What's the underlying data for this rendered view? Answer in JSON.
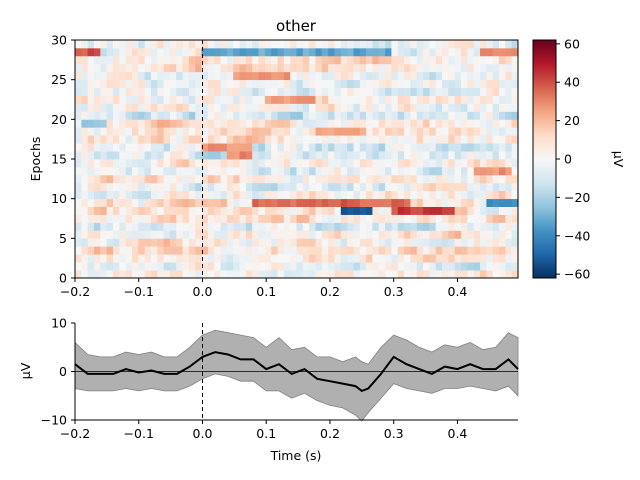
{
  "chart_data": [
    {
      "type": "heatmap",
      "title": "other",
      "xlabel": "",
      "ylabel": "Epochs",
      "xlim": [
        -0.2,
        0.495
      ],
      "ylim": [
        0,
        30
      ],
      "x_ticks": [
        "−0.2",
        "−0.1",
        "0.0",
        "0.1",
        "0.2",
        "0.3",
        "0.4"
      ],
      "y_ticks": [
        "0",
        "5",
        "10",
        "15",
        "20",
        "25",
        "30"
      ],
      "colorbar": {
        "label": "µV",
        "range": [
          -62,
          62
        ],
        "ticks": [
          "60",
          "40",
          "20",
          "0",
          "−20",
          "−40",
          "−60"
        ],
        "colormap": "RdBu_r",
        "colors": [
          "#053061",
          "#2166ac",
          "#4393c3",
          "#92c5de",
          "#d1e5f0",
          "#f7f7f7",
          "#fddbc7",
          "#f4a582",
          "#d6604d",
          "#b2182b",
          "#67001f"
        ]
      },
      "n_epochs": 30,
      "n_times": 70,
      "event_line_x": 0.0,
      "grid": false,
      "features": [
        {
          "epoch": 28,
          "t_start": -0.2,
          "t_end": -0.16,
          "value": 42
        },
        {
          "epoch": 28,
          "t_start": 0.0,
          "t_end": 0.3,
          "value": -35
        },
        {
          "epoch": 28,
          "t_start": 0.44,
          "t_end": 0.495,
          "value": 30
        },
        {
          "epoch": 9,
          "t_start": 0.08,
          "t_end": 0.33,
          "value": 40
        },
        {
          "epoch": 8,
          "t_start": 0.22,
          "t_end": 0.27,
          "value": -58
        },
        {
          "epoch": 8,
          "t_start": 0.3,
          "t_end": 0.4,
          "value": 45
        },
        {
          "epoch": 9,
          "t_start": 0.45,
          "t_end": 0.495,
          "value": -40
        },
        {
          "epoch": 16,
          "t_start": 0.0,
          "t_end": 0.08,
          "value": 30
        },
        {
          "epoch": 25,
          "t_start": 0.05,
          "t_end": 0.14,
          "value": 30
        },
        {
          "epoch": 22,
          "t_start": 0.1,
          "t_end": 0.18,
          "value": 28
        },
        {
          "epoch": 18,
          "t_start": 0.18,
          "t_end": 0.26,
          "value": 26
        },
        {
          "epoch": 15,
          "t_start": 0.04,
          "t_end": 0.08,
          "value": 32
        },
        {
          "epoch": 13,
          "t_start": 0.43,
          "t_end": 0.49,
          "value": 30
        },
        {
          "epoch": 19,
          "t_start": -0.19,
          "t_end": -0.15,
          "value": -25
        }
      ]
    },
    {
      "type": "line",
      "title": "",
      "xlabel": "Time (s)",
      "ylabel": "µV",
      "xlim": [
        -0.2,
        0.495
      ],
      "ylim": [
        -10,
        10
      ],
      "x_ticks": [
        "−0.2",
        "−0.1",
        "0.0",
        "0.1",
        "0.2",
        "0.3",
        "0.4"
      ],
      "y_ticks": [
        "10",
        "0",
        "−10"
      ],
      "event_line_x": 0.0,
      "grid": false,
      "series": [
        {
          "color": "#000000",
          "x": [
            -0.2,
            -0.18,
            -0.16,
            -0.14,
            -0.12,
            -0.1,
            -0.08,
            -0.06,
            -0.04,
            -0.02,
            0.0,
            0.02,
            0.04,
            0.06,
            0.08,
            0.1,
            0.12,
            0.14,
            0.16,
            0.18,
            0.2,
            0.22,
            0.24,
            0.25,
            0.26,
            0.28,
            0.3,
            0.32,
            0.34,
            0.36,
            0.38,
            0.4,
            0.42,
            0.44,
            0.46,
            0.48,
            0.495
          ],
          "values": [
            1.5,
            -0.5,
            -0.5,
            -0.5,
            0.5,
            -0.2,
            0.2,
            -0.5,
            -0.5,
            1.0,
            3.0,
            4.0,
            3.5,
            2.5,
            2.5,
            0.5,
            1.5,
            -0.5,
            0.5,
            -1.5,
            -2.0,
            -2.5,
            -3.0,
            -4.0,
            -3.5,
            -0.5,
            3.0,
            1.5,
            0.5,
            -0.5,
            1.0,
            0.5,
            1.5,
            0.5,
            0.5,
            2.5,
            0.5
          ],
          "band_low": [
            -3.5,
            -4.0,
            -4.0,
            -4.0,
            -3.5,
            -4.0,
            -3.5,
            -4.0,
            -4.0,
            -3.0,
            -1.5,
            -0.5,
            -1.0,
            -2.0,
            -2.0,
            -4.0,
            -4.0,
            -5.5,
            -4.5,
            -6.0,
            -7.0,
            -7.5,
            -9.0,
            -10.2,
            -8.5,
            -5.5,
            -2.5,
            -3.5,
            -4.0,
            -4.5,
            -3.5,
            -3.5,
            -3.0,
            -3.5,
            -4.0,
            -3.0,
            -5.0
          ],
          "band_high": [
            6.0,
            3.5,
            3.0,
            3.0,
            4.0,
            3.5,
            4.0,
            3.0,
            3.0,
            5.0,
            7.5,
            8.5,
            8.0,
            7.5,
            7.0,
            5.0,
            7.0,
            4.5,
            5.0,
            3.0,
            3.0,
            2.0,
            3.0,
            2.0,
            1.5,
            5.0,
            7.5,
            6.5,
            5.0,
            4.0,
            5.5,
            5.0,
            6.0,
            4.5,
            5.0,
            8.0,
            7.0
          ]
        }
      ]
    }
  ]
}
